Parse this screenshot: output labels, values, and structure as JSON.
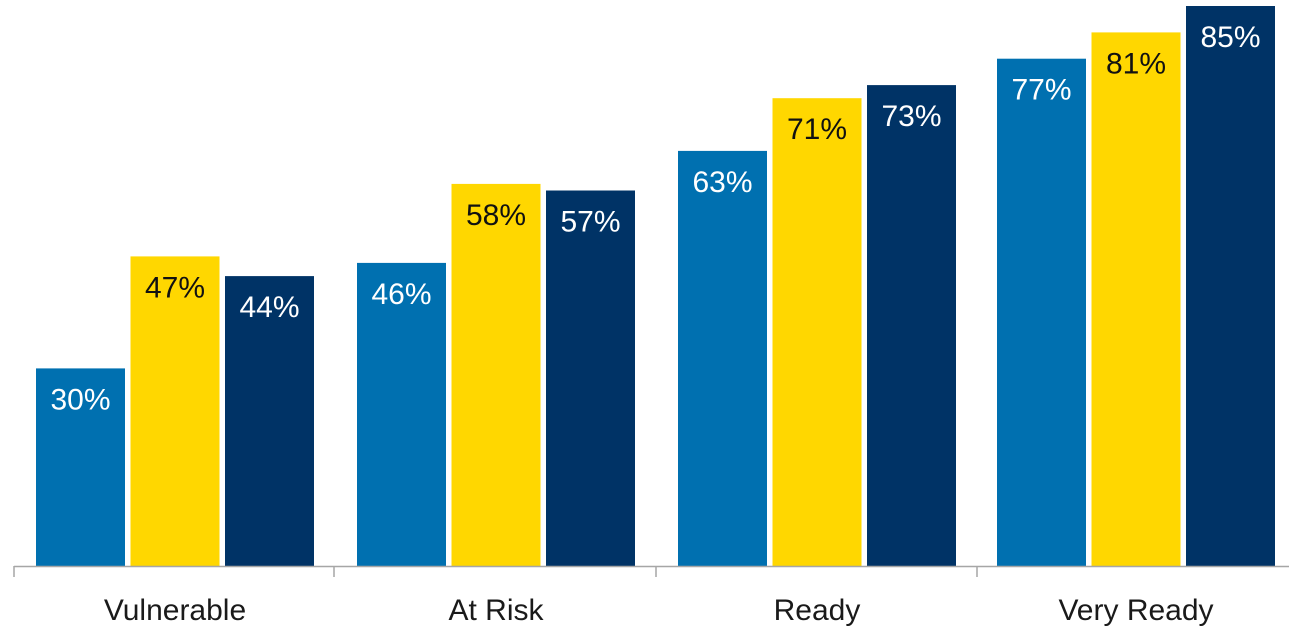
{
  "chart_data": {
    "type": "bar",
    "categories": [
      "Vulnerable",
      "At Risk",
      "Ready",
      "Very Ready"
    ],
    "series": [
      {
        "values": [
          30,
          46,
          63,
          77
        ],
        "color": "#0070B0",
        "label_color": "#ffffff"
      },
      {
        "values": [
          47,
          58,
          71,
          81
        ],
        "color": "#FFD700",
        "label_color": "#111111"
      },
      {
        "values": [
          44,
          57,
          73,
          85
        ],
        "color": "#003366",
        "label_color": "#ffffff"
      }
    ],
    "value_suffix": "%",
    "ylim": [
      0,
      85
    ],
    "title": "",
    "xlabel": "",
    "ylabel": "",
    "grid": false,
    "legend": "none"
  }
}
